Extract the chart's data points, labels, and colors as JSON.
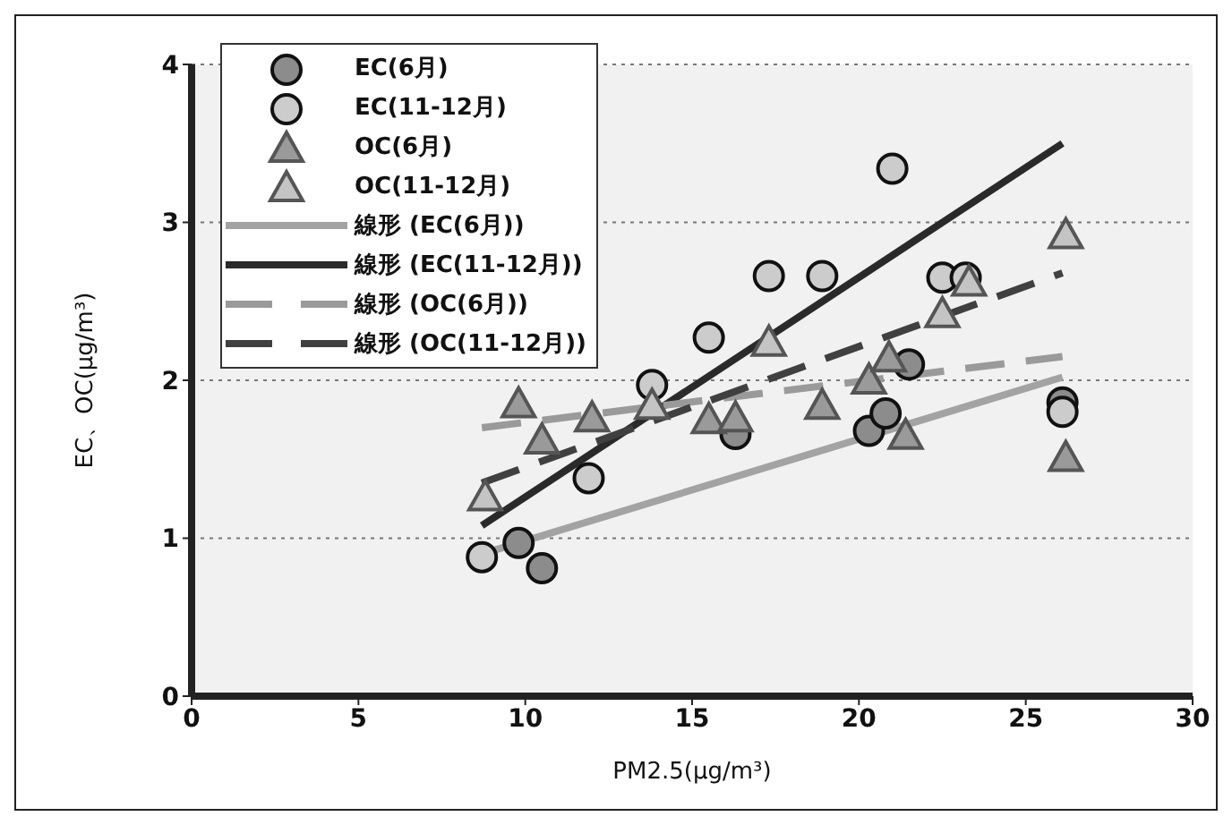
{
  "chart_data": {
    "type": "scatter",
    "xlabel": "PM2.5(μg/m³)",
    "ylabel": "EC、OC(μg/m³)",
    "xlim": [
      0,
      30
    ],
    "xticks": [
      0,
      5,
      10,
      15,
      20,
      25,
      30
    ],
    "ylim": [
      0,
      4
    ],
    "yticks": [
      0,
      1,
      2,
      3,
      4
    ],
    "grid": "y",
    "legend": "top left",
    "series": [
      {
        "name": "EC(6月)",
        "marker": "circle",
        "color": "#8c8c8c",
        "x": [
          9.8,
          10.5,
          16.3,
          20.3,
          20.8,
          21.5,
          26.1
        ],
        "values": [
          0.97,
          0.81,
          1.66,
          1.68,
          1.79,
          2.1,
          1.86
        ]
      },
      {
        "name": "EC(11-12月)",
        "marker": "circle",
        "color": "#cccccc",
        "x": [
          8.7,
          11.9,
          13.8,
          15.5,
          17.3,
          18.9,
          21.0,
          22.5,
          23.2,
          26.1
        ],
        "values": [
          0.88,
          1.38,
          1.97,
          2.27,
          2.66,
          2.66,
          3.34,
          2.65,
          2.65,
          1.8
        ]
      },
      {
        "name": "OC(6月)",
        "marker": "triangle",
        "color": "#9a9a9a",
        "x": [
          9.8,
          10.5,
          12.0,
          15.5,
          16.3,
          18.9,
          20.3,
          20.9,
          21.4,
          26.2
        ],
        "values": [
          1.85,
          1.62,
          1.76,
          1.75,
          1.76,
          1.84,
          2.0,
          2.14,
          1.65,
          1.51
        ]
      },
      {
        "name": "OC(11-12月)",
        "marker": "triangle",
        "color": "#c4c4c4",
        "x": [
          8.8,
          13.8,
          17.3,
          22.5,
          23.3,
          26.2
        ],
        "values": [
          1.26,
          1.84,
          2.24,
          2.42,
          2.62,
          2.92
        ]
      },
      {
        "name": "線形 (EC(6月))",
        "type": "line",
        "line_style": "solid",
        "color": "#a3a3a3",
        "x": [
          8.7,
          26.1
        ],
        "values": [
          0.9,
          2.02
        ]
      },
      {
        "name": "線形 (EC(11-12月))",
        "type": "line",
        "line_style": "solid",
        "color": "#2a2a2a",
        "x": [
          8.7,
          26.1
        ],
        "values": [
          1.08,
          3.5
        ]
      },
      {
        "name": "線形 (OC(6月))",
        "type": "line",
        "line_style": "dashed",
        "color": "#9a9a9a",
        "x": [
          8.7,
          26.1
        ],
        "values": [
          1.7,
          2.15
        ]
      },
      {
        "name": "線形 (OC(11-12月))",
        "type": "line",
        "line_style": "dashed",
        "color": "#404040",
        "x": [
          8.7,
          26.1
        ],
        "values": [
          1.35,
          2.68
        ]
      }
    ]
  }
}
